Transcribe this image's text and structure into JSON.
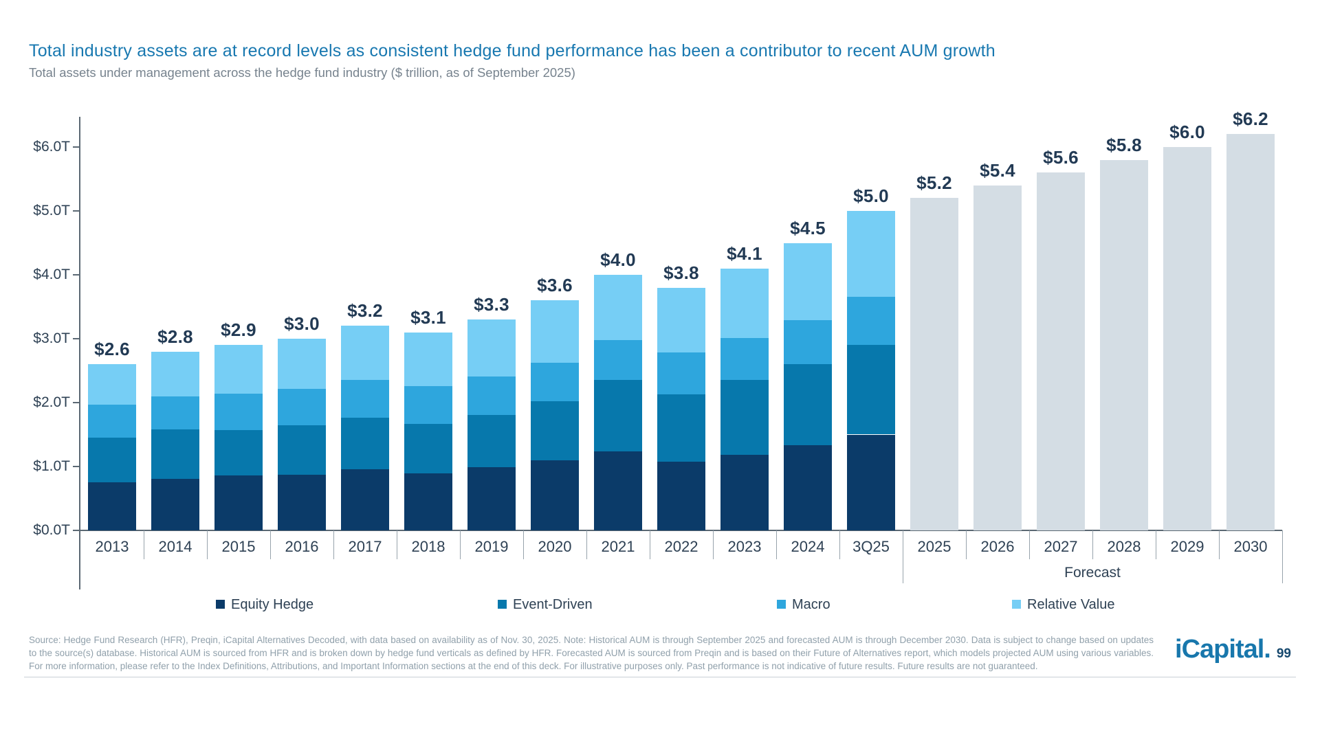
{
  "header": {
    "title": "Total industry assets are at record levels as consistent hedge fund performance has been a contributor to recent AUM growth",
    "subtitle": "Total assets under management across the hedge fund industry ($ trillion, as of September 2025)"
  },
  "chart_data": {
    "type": "bar",
    "stacked": true,
    "unit": "$ trillion",
    "title": "Total assets under management across the hedge fund industry",
    "categories": [
      "2013",
      "2014",
      "2015",
      "2016",
      "2017",
      "2018",
      "2019",
      "2020",
      "2021",
      "2022",
      "2023",
      "2024",
      "3Q25"
    ],
    "series": [
      {
        "name": "Equity Hedge",
        "color": "#0B3B69",
        "values": [
          0.75,
          0.81,
          0.86,
          0.87,
          0.96,
          0.89,
          0.99,
          1.1,
          1.24,
          1.08,
          1.18,
          1.33,
          1.5
        ]
      },
      {
        "name": "Event-Driven",
        "color": "#0778AC",
        "values": [
          0.7,
          0.77,
          0.71,
          0.78,
          0.8,
          0.78,
          0.82,
          0.92,
          1.11,
          1.05,
          1.17,
          1.27,
          1.4
        ]
      },
      {
        "name": "Macro",
        "color": "#2EA6DD",
        "values": [
          0.52,
          0.52,
          0.57,
          0.57,
          0.6,
          0.59,
          0.6,
          0.6,
          0.63,
          0.65,
          0.66,
          0.69,
          0.76
        ]
      },
      {
        "name": "Relative Value",
        "color": "#76CEF5",
        "values": [
          0.63,
          0.7,
          0.76,
          0.78,
          0.84,
          0.84,
          0.89,
          0.98,
          1.02,
          1.02,
          1.09,
          1.21,
          1.34
        ]
      }
    ],
    "totals": [
      2.6,
      2.8,
      2.9,
      3.0,
      3.2,
      3.1,
      3.3,
      3.6,
      4.0,
      3.8,
      4.1,
      4.5,
      5.0
    ],
    "total_labels": [
      "$2.6",
      "$2.8",
      "$2.9",
      "$3.0",
      "$3.2",
      "$3.1",
      "$3.3",
      "$3.6",
      "$4.0",
      "$3.8",
      "$4.1",
      "$4.5",
      "$5.0"
    ],
    "forecast": {
      "label": "Forecast",
      "color": "#D4DDE4",
      "categories": [
        "2025",
        "2026",
        "2027",
        "2028",
        "2029",
        "2030"
      ],
      "values": [
        5.2,
        5.4,
        5.6,
        5.8,
        6.0,
        6.2
      ],
      "value_labels": [
        "$5.2",
        "$5.4",
        "$5.6",
        "$5.8",
        "$6.0",
        "$6.2"
      ]
    },
    "y_axis": {
      "ticks": [
        "$0.0T",
        "$1.0T",
        "$2.0T",
        "$3.0T",
        "$4.0T",
        "$5.0T",
        "$6.0T"
      ],
      "min": 0,
      "max": 6.6,
      "grid": false
    },
    "legend": [
      "Equity Hedge",
      "Event-Driven",
      "Macro",
      "Relative Value"
    ],
    "legend_position": "bottom"
  },
  "footer": {
    "source_text": "Source: Hedge Fund Research (HFR), Preqin, iCapital Alternatives Decoded, with data based on availability as of Nov. 30, 2025. Note: Historical AUM is through September 2025 and forecasted AUM is through December 2030. Data is subject to change based on updates to the source(s) database. Historical AUM is sourced from HFR and is broken down by hedge fund verticals as defined by HFR. Forecasted AUM is sourced from Preqin and is based on their Future of Alternatives report, which models projected AUM using various variables. For more information, please refer to the Index Definitions, Attributions, and Important Information sections at the end of this deck. For illustrative purposes only. Past performance is not indicative of future results. Future results are not guaranteed.",
    "logo_text": "iCapital.",
    "page_number": "99"
  }
}
